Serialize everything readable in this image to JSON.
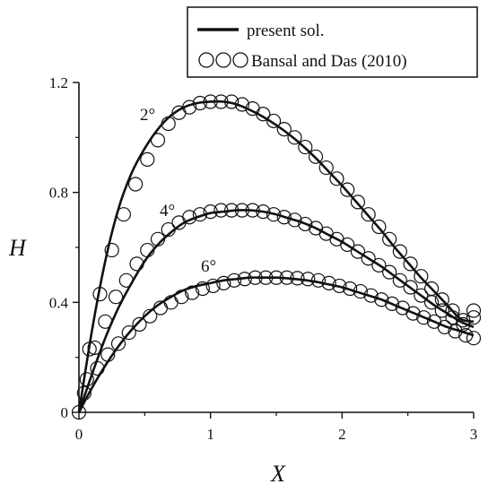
{
  "chart_data": {
    "type": "line",
    "xlabel": "X",
    "ylabel": "H",
    "xlim": [
      0,
      3
    ],
    "ylim": [
      0,
      1.2
    ],
    "x_ticks": [
      "0",
      "1",
      "2",
      "3"
    ],
    "y_ticks": [
      "0",
      "0.4",
      "0.8",
      "1.2"
    ],
    "grid": false,
    "legend_position": "top-right",
    "legend": [
      {
        "label": "present sol.",
        "style": "line"
      },
      {
        "label": "Bansal and Das (2010)",
        "style": "open-circles"
      }
    ],
    "series": [
      {
        "name": "2°",
        "line": {
          "x": [
            0,
            0.1,
            0.2,
            0.3,
            0.4,
            0.5,
            0.6,
            0.7,
            0.8,
            0.9,
            1.0,
            1.1,
            1.2,
            1.3,
            1.4,
            1.5,
            1.6,
            1.7,
            1.8,
            1.9,
            2.0,
            2.1,
            2.2,
            2.3,
            2.4,
            2.5,
            2.6,
            2.7,
            2.8,
            2.9,
            3.0
          ],
          "y": [
            0,
            0.3,
            0.55,
            0.74,
            0.87,
            0.96,
            1.03,
            1.08,
            1.11,
            1.125,
            1.13,
            1.13,
            1.12,
            1.1,
            1.075,
            1.045,
            1.01,
            0.97,
            0.925,
            0.875,
            0.825,
            0.77,
            0.715,
            0.66,
            0.6,
            0.545,
            0.49,
            0.44,
            0.39,
            0.34,
            0.33
          ]
        },
        "points": {
          "x": [
            0,
            0.08,
            0.16,
            0.25,
            0.34,
            0.43,
            0.52,
            0.6,
            0.68,
            0.76,
            0.84,
            0.92,
            1.0,
            1.08,
            1.16,
            1.24,
            1.32,
            1.4,
            1.48,
            1.56,
            1.64,
            1.72,
            1.8,
            1.88,
            1.96,
            2.04,
            2.12,
            2.2,
            2.28,
            2.36,
            2.44,
            2.52,
            2.6,
            2.68,
            2.76,
            2.84,
            2.92,
            3.0
          ],
          "y": [
            0,
            0.23,
            0.43,
            0.59,
            0.72,
            0.83,
            0.92,
            0.99,
            1.05,
            1.09,
            1.11,
            1.125,
            1.13,
            1.13,
            1.13,
            1.12,
            1.105,
            1.085,
            1.06,
            1.03,
            1.0,
            0.965,
            0.93,
            0.89,
            0.85,
            0.81,
            0.765,
            0.72,
            0.675,
            0.63,
            0.585,
            0.54,
            0.495,
            0.45,
            0.41,
            0.37,
            0.335,
            0.37
          ]
        }
      },
      {
        "name": "4°",
        "line": {
          "x": [
            0,
            0.1,
            0.2,
            0.3,
            0.4,
            0.5,
            0.6,
            0.7,
            0.8,
            0.9,
            1.0,
            1.1,
            1.2,
            1.3,
            1.4,
            1.5,
            1.6,
            1.7,
            1.8,
            1.9,
            2.0,
            2.1,
            2.2,
            2.3,
            2.4,
            2.5,
            2.6,
            2.7,
            2.8,
            2.9,
            3.0
          ],
          "y": [
            0,
            0.14,
            0.27,
            0.38,
            0.47,
            0.55,
            0.61,
            0.655,
            0.69,
            0.71,
            0.725,
            0.73,
            0.735,
            0.735,
            0.73,
            0.72,
            0.705,
            0.69,
            0.67,
            0.645,
            0.62,
            0.59,
            0.56,
            0.53,
            0.495,
            0.46,
            0.425,
            0.39,
            0.36,
            0.33,
            0.31
          ]
        },
        "points": {
          "x": [
            0.04,
            0.12,
            0.2,
            0.28,
            0.36,
            0.44,
            0.52,
            0.6,
            0.68,
            0.76,
            0.84,
            0.92,
            1.0,
            1.08,
            1.16,
            1.24,
            1.32,
            1.4,
            1.48,
            1.56,
            1.64,
            1.72,
            1.8,
            1.88,
            1.96,
            2.04,
            2.12,
            2.2,
            2.28,
            2.36,
            2.44,
            2.52,
            2.6,
            2.68,
            2.76,
            2.84,
            2.92,
            3.0
          ],
          "y": [
            0.07,
            0.235,
            0.33,
            0.42,
            0.48,
            0.54,
            0.59,
            0.63,
            0.665,
            0.69,
            0.71,
            0.72,
            0.73,
            0.735,
            0.735,
            0.735,
            0.735,
            0.73,
            0.72,
            0.71,
            0.7,
            0.685,
            0.67,
            0.65,
            0.63,
            0.61,
            0.585,
            0.56,
            0.535,
            0.51,
            0.48,
            0.455,
            0.425,
            0.4,
            0.37,
            0.345,
            0.32,
            0.345
          ]
        }
      },
      {
        "name": "6°",
        "line": {
          "x": [
            0,
            0.1,
            0.2,
            0.3,
            0.4,
            0.5,
            0.6,
            0.7,
            0.8,
            0.9,
            1.0,
            1.1,
            1.2,
            1.3,
            1.4,
            1.5,
            1.6,
            1.7,
            1.8,
            1.9,
            2.0,
            2.1,
            2.2,
            2.3,
            2.4,
            2.5,
            2.6,
            2.7,
            2.8,
            2.9,
            3.0
          ],
          "y": [
            0,
            0.09,
            0.17,
            0.24,
            0.3,
            0.35,
            0.39,
            0.42,
            0.445,
            0.46,
            0.47,
            0.48,
            0.485,
            0.49,
            0.49,
            0.49,
            0.487,
            0.482,
            0.475,
            0.465,
            0.455,
            0.44,
            0.425,
            0.41,
            0.39,
            0.37,
            0.35,
            0.33,
            0.31,
            0.295,
            0.28
          ]
        },
        "points": {
          "x": [
            0.06,
            0.14,
            0.22,
            0.3,
            0.38,
            0.46,
            0.54,
            0.62,
            0.7,
            0.78,
            0.86,
            0.94,
            1.02,
            1.1,
            1.18,
            1.26,
            1.34,
            1.42,
            1.5,
            1.58,
            1.66,
            1.74,
            1.82,
            1.9,
            1.98,
            2.06,
            2.14,
            2.22,
            2.3,
            2.38,
            2.46,
            2.54,
            2.62,
            2.7,
            2.78,
            2.86,
            2.94,
            3.0
          ],
          "y": [
            0.12,
            0.16,
            0.21,
            0.25,
            0.29,
            0.32,
            0.35,
            0.38,
            0.4,
            0.42,
            0.435,
            0.45,
            0.46,
            0.47,
            0.48,
            0.485,
            0.49,
            0.49,
            0.49,
            0.49,
            0.488,
            0.485,
            0.48,
            0.47,
            0.46,
            0.45,
            0.44,
            0.425,
            0.41,
            0.395,
            0.38,
            0.36,
            0.345,
            0.33,
            0.31,
            0.295,
            0.28,
            0.27
          ]
        }
      }
    ]
  }
}
